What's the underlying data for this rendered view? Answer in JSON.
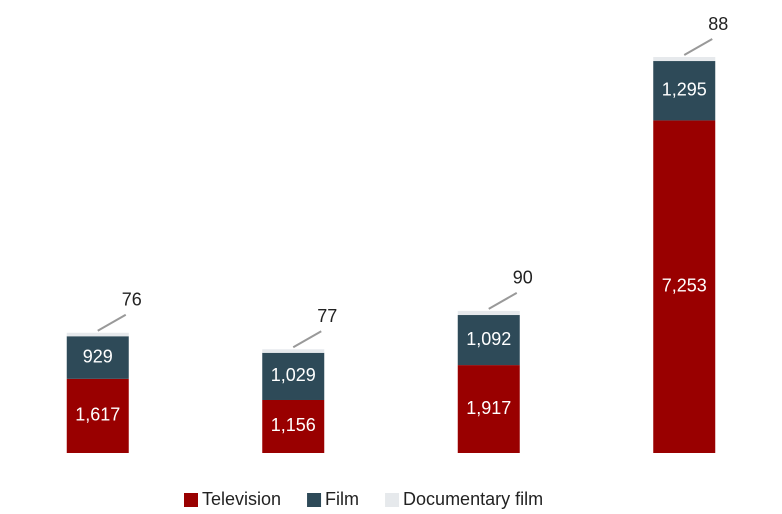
{
  "chart_data": {
    "type": "stacked-bar",
    "categories": [
      null,
      null,
      null,
      null
    ],
    "series": [
      {
        "name": "Television",
        "color": "#990000",
        "values": [
          1617,
          1156,
          1917,
          7253
        ],
        "value_labels": [
          "1,617",
          "1,156",
          "1,917",
          "7,253"
        ]
      },
      {
        "name": "Film",
        "color": "#2e4a58",
        "values": [
          929,
          1029,
          1092,
          1295
        ],
        "value_labels": [
          "929",
          "1,029",
          "1,092",
          "1,295"
        ]
      },
      {
        "name": "Documentary film",
        "color": "#e6e9ec",
        "values": [
          76,
          77,
          90,
          88
        ],
        "value_labels": [
          "76",
          "77",
          "90",
          "88"
        ]
      }
    ],
    "legend": "bottom"
  }
}
